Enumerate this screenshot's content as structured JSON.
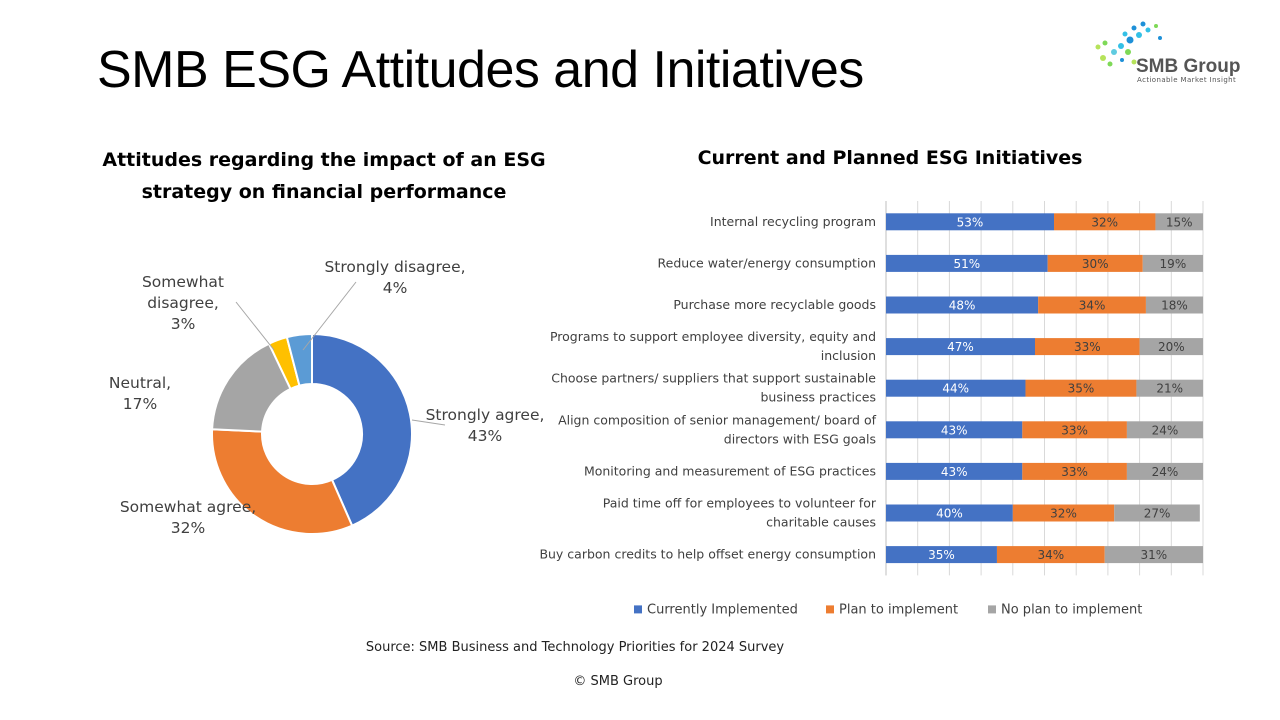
{
  "page": {
    "title": "SMB ESG Attitudes and Initiatives",
    "source": "Source: SMB Business and Technology Priorities for 2024 Survey",
    "copyright": "© SMB Group"
  },
  "logo": {
    "name": "SMB Group",
    "tagline": "Actionable Market Insight",
    "icon": "dot-swirl-logo",
    "colors": [
      "#1e90d8",
      "#33c0e6",
      "#7ed957",
      "#b6e35a"
    ]
  },
  "chart_data": [
    {
      "type": "pie",
      "title": "Attitudes regarding the impact of an ESG strategy on financial performance",
      "donut": true,
      "slices": [
        {
          "label": "Strongly agree",
          "value": 43,
          "display": "Strongly agree, 43%",
          "color": "#4472c4"
        },
        {
          "label": "Somewhat agree",
          "value": 32,
          "display": "Somewhat agree, 32%",
          "color": "#ed7d31"
        },
        {
          "label": "Neutral",
          "value": 17,
          "display": "Neutral, 17%",
          "color": "#a5a5a5"
        },
        {
          "label": "Somewhat disagree",
          "value": 3,
          "display": "Somewhat disagree, 3%",
          "color": "#ffc000"
        },
        {
          "label": "Strongly disagree",
          "value": 4,
          "display": "Strongly disagree, 4%",
          "color": "#5b9bd5"
        }
      ]
    },
    {
      "type": "bar",
      "orientation": "horizontal",
      "stacked": "100%",
      "title": "Current and Planned ESG Initiatives",
      "categories": [
        "Internal recycling program",
        "Reduce water/energy consumption",
        "Purchase more recyclable goods",
        "Programs to support employee diversity, equity and inclusion",
        "Choose partners/ suppliers that support sustainable business practices",
        "Align composition of senior management/ board of directors with ESG goals",
        "Monitoring and measurement of ESG practices",
        "Paid time off for employees to volunteer for charitable causes",
        "Buy carbon credits to help offset energy consumption"
      ],
      "series": [
        {
          "name": "Currently Implemented",
          "color": "#4472c4",
          "values": [
            53,
            51,
            48,
            47,
            44,
            43,
            43,
            40,
            35
          ]
        },
        {
          "name": "Plan to implement",
          "color": "#ed7d31",
          "values": [
            32,
            30,
            34,
            33,
            35,
            33,
            33,
            32,
            34
          ]
        },
        {
          "name": "No plan to implement",
          "color": "#a5a5a5",
          "values": [
            15,
            19,
            18,
            20,
            21,
            24,
            24,
            27,
            31
          ]
        }
      ],
      "xlim": [
        0,
        100
      ],
      "grid": true,
      "legend": "bottom"
    }
  ]
}
